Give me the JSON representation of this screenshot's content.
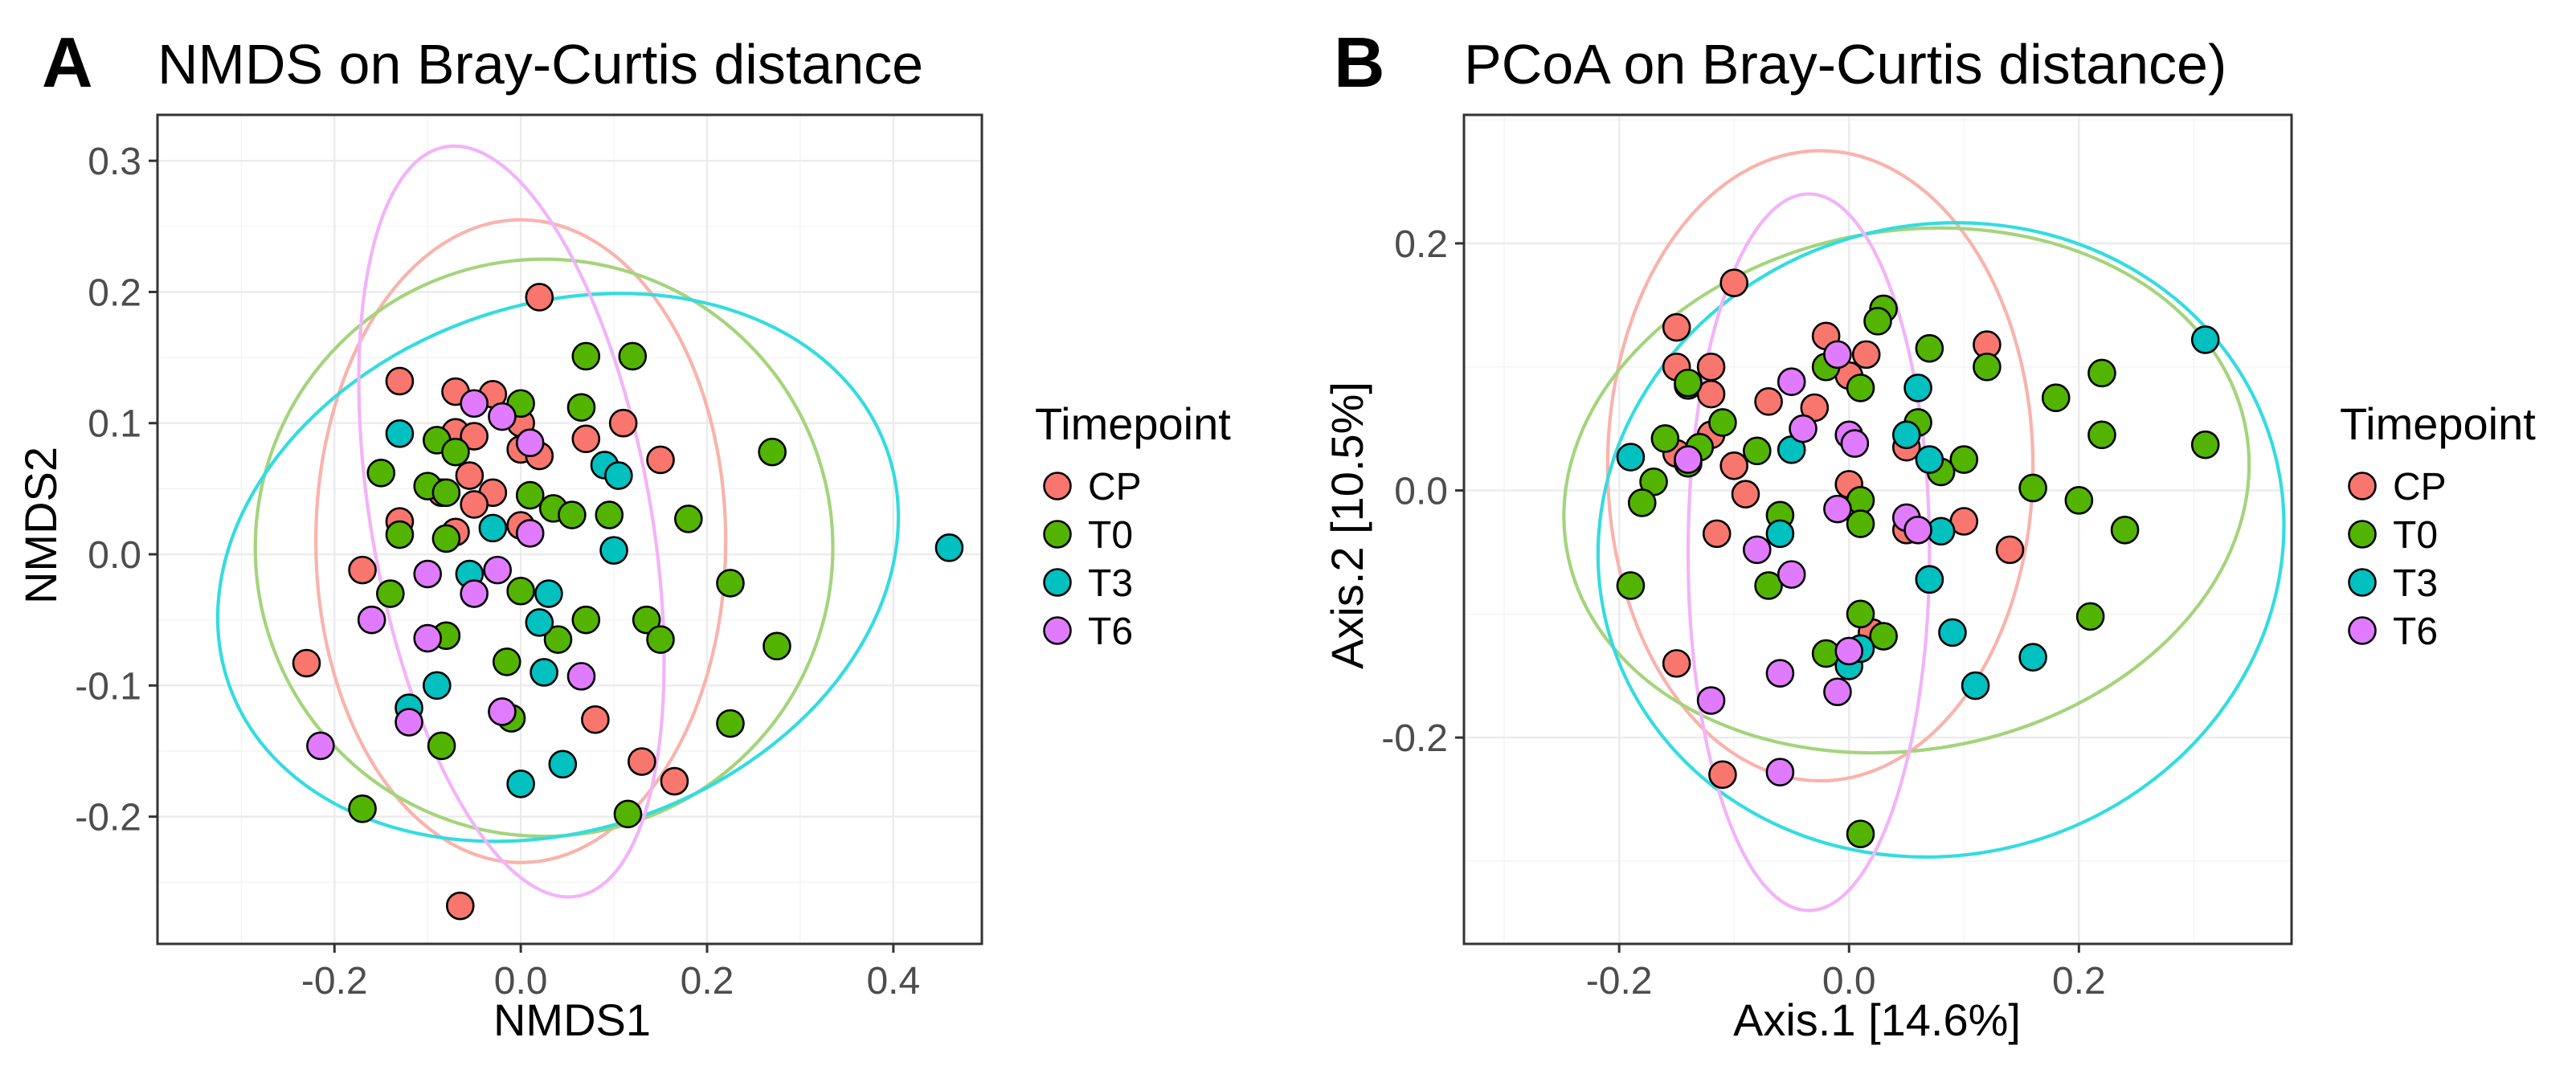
{
  "figure": {
    "legend_title": "Timepoint",
    "groups": [
      "CP",
      "T0",
      "T3",
      "T6"
    ],
    "colors": {
      "CP": "#F8766D",
      "T0": "#53B400",
      "T3": "#00C0C0",
      "T6": "#E07BFF"
    },
    "ellipse_colors": {
      "CP": "#F9B3AC",
      "T0": "#A4D47C",
      "T3": "#33DCE0",
      "T6": "#F2B3F8"
    }
  },
  "chart_data": [
    {
      "type": "scatter",
      "panel": "A",
      "title": "NMDS on Bray-Curtis distance",
      "xlabel": "NMDS1",
      "ylabel": "NMDS2",
      "xlim": [
        -0.39,
        0.495
      ],
      "ylim": [
        -0.297,
        0.335
      ],
      "xticks": [
        -0.2,
        0.0,
        0.2,
        0.4
      ],
      "xtick_labels": [
        "-0.2",
        "0.0",
        "0.2",
        "0.4"
      ],
      "yticks": [
        -0.2,
        -0.1,
        0.0,
        0.1,
        0.2,
        0.3
      ],
      "ytick_labels": [
        "-0.2",
        "-0.1",
        "0.0",
        "0.1",
        "0.2",
        "0.3"
      ],
      "grid": true,
      "legend_position": "right",
      "ellipses": {
        "CP": {
          "cx": 0.0,
          "cy": 0.01,
          "rx": 0.22,
          "ry": 0.245,
          "angle": 0
        },
        "T0": {
          "cx": 0.025,
          "cy": 0.005,
          "rx": 0.31,
          "ry": 0.22,
          "angle": 0
        },
        "T3": {
          "cx": 0.04,
          "cy": -0.01,
          "rx": 0.375,
          "ry": 0.2,
          "angle": 20
        },
        "T6": {
          "cx": -0.01,
          "cy": 0.025,
          "rx": 0.15,
          "ry": 0.29,
          "angle": 10
        }
      },
      "series": [
        {
          "name": "CP",
          "points": [
            [
              0.02,
              0.196
            ],
            [
              -0.13,
              0.132
            ],
            [
              -0.07,
              0.124
            ],
            [
              -0.03,
              0.122
            ],
            [
              -0.07,
              0.093
            ],
            [
              -0.05,
              0.09
            ],
            [
              0.0,
              0.1
            ],
            [
              0.0,
              0.08
            ],
            [
              0.02,
              0.075
            ],
            [
              0.07,
              0.088
            ],
            [
              0.11,
              0.1
            ],
            [
              0.15,
              0.072
            ],
            [
              -0.085,
              0.047
            ],
            [
              -0.055,
              0.06
            ],
            [
              -0.03,
              0.047
            ],
            [
              -0.05,
              0.038
            ],
            [
              -0.13,
              0.025
            ],
            [
              -0.07,
              0.017
            ],
            [
              0.0,
              0.022
            ],
            [
              -0.17,
              -0.012
            ],
            [
              -0.23,
              -0.083
            ],
            [
              0.08,
              -0.126
            ],
            [
              0.13,
              -0.158
            ],
            [
              0.165,
              -0.173
            ],
            [
              -0.065,
              -0.268
            ]
          ]
        },
        {
          "name": "T0",
          "points": [
            [
              0.07,
              0.151
            ],
            [
              0.12,
              0.151
            ],
            [
              0.0,
              0.115
            ],
            [
              0.065,
              0.112
            ],
            [
              -0.09,
              0.087
            ],
            [
              -0.07,
              0.078
            ],
            [
              -0.15,
              0.062
            ],
            [
              -0.1,
              0.052
            ],
            [
              -0.08,
              0.047
            ],
            [
              0.01,
              0.045
            ],
            [
              0.035,
              0.035
            ],
            [
              0.055,
              0.03
            ],
            [
              0.095,
              0.03
            ],
            [
              -0.13,
              0.015
            ],
            [
              -0.08,
              0.012
            ],
            [
              0.18,
              0.027
            ],
            [
              0.27,
              0.078
            ],
            [
              -0.14,
              -0.03
            ],
            [
              0.0,
              -0.028
            ],
            [
              0.07,
              -0.05
            ],
            [
              0.04,
              -0.065
            ],
            [
              -0.08,
              -0.062
            ],
            [
              0.135,
              -0.05
            ],
            [
              0.15,
              -0.065
            ],
            [
              0.225,
              -0.022
            ],
            [
              0.275,
              -0.07
            ],
            [
              -0.015,
              -0.082
            ],
            [
              -0.01,
              -0.125
            ],
            [
              0.225,
              -0.129
            ],
            [
              -0.085,
              -0.146
            ],
            [
              -0.17,
              -0.194
            ],
            [
              0.115,
              -0.198
            ]
          ]
        },
        {
          "name": "T3",
          "points": [
            [
              -0.13,
              0.092
            ],
            [
              0.09,
              0.068
            ],
            [
              0.105,
              0.06
            ],
            [
              -0.03,
              0.02
            ],
            [
              0.1,
              0.003
            ],
            [
              -0.055,
              -0.015
            ],
            [
              0.03,
              -0.03
            ],
            [
              0.02,
              -0.052
            ],
            [
              -0.12,
              -0.117
            ],
            [
              -0.09,
              -0.1
            ],
            [
              0.025,
              -0.09
            ],
            [
              0.0,
              -0.175
            ],
            [
              0.045,
              -0.16
            ],
            [
              0.46,
              0.005
            ]
          ]
        },
        {
          "name": "T6",
          "points": [
            [
              -0.05,
              0.115
            ],
            [
              -0.02,
              0.105
            ],
            [
              0.01,
              0.085
            ],
            [
              0.01,
              0.016
            ],
            [
              -0.1,
              -0.015
            ],
            [
              -0.05,
              -0.03
            ],
            [
              -0.025,
              -0.012
            ],
            [
              -0.16,
              -0.05
            ],
            [
              -0.1,
              -0.064
            ],
            [
              -0.02,
              -0.12
            ],
            [
              0.065,
              -0.093
            ],
            [
              -0.12,
              -0.128
            ],
            [
              -0.215,
              -0.146
            ]
          ]
        }
      ]
    },
    {
      "type": "scatter",
      "panel": "B",
      "title": "PCoA on Bray-Curtis distance)",
      "xlabel": "Axis.1   [14.6%]",
      "ylabel": "Axis.2   [10.5%]",
      "xlim": [
        -0.335,
        0.385
      ],
      "ylim": [
        -0.367,
        0.304
      ],
      "xticks": [
        -0.2,
        0.0,
        0.2
      ],
      "xtick_labels": [
        "-0.2",
        "0.0",
        "0.2"
      ],
      "yticks": [
        -0.2,
        0.0,
        0.2
      ],
      "ytick_labels": [
        "-0.2",
        "0.0",
        "0.2"
      ],
      "grid": true,
      "legend_position": "right",
      "ellipses": {
        "CP": {
          "cx": -0.025,
          "cy": 0.02,
          "rx": 0.185,
          "ry": 0.255,
          "angle": 0
        },
        "T0": {
          "cx": 0.05,
          "cy": 0.0,
          "rx": 0.3,
          "ry": 0.21,
          "angle": 10
        },
        "T3": {
          "cx": 0.08,
          "cy": -0.04,
          "rx": 0.3,
          "ry": 0.255,
          "angle": 15
        },
        "T6": {
          "cx": -0.035,
          "cy": -0.05,
          "rx": 0.105,
          "ry": 0.29,
          "angle": 0
        }
      },
      "series": [
        {
          "name": "CP",
          "points": [
            [
              -0.1,
              0.168
            ],
            [
              -0.15,
              0.132
            ],
            [
              -0.02,
              0.125
            ],
            [
              0.015,
              0.11
            ],
            [
              0.12,
              0.118
            ],
            [
              -0.15,
              0.1
            ],
            [
              -0.12,
              0.1
            ],
            [
              -0.14,
              0.085
            ],
            [
              -0.12,
              0.078
            ],
            [
              0.0,
              0.093
            ],
            [
              -0.03,
              0.067
            ],
            [
              -0.07,
              0.072
            ],
            [
              -0.12,
              0.045
            ],
            [
              -0.15,
              0.03
            ],
            [
              -0.1,
              0.02
            ],
            [
              0.05,
              0.035
            ],
            [
              0.0,
              0.005
            ],
            [
              -0.09,
              -0.003
            ],
            [
              -0.115,
              -0.035
            ],
            [
              0.05,
              -0.032
            ],
            [
              0.1,
              -0.025
            ],
            [
              0.14,
              -0.048
            ],
            [
              0.02,
              -0.115
            ],
            [
              -0.15,
              -0.14
            ],
            [
              -0.11,
              -0.23
            ]
          ]
        },
        {
          "name": "T0",
          "points": [
            [
              0.03,
              0.147
            ],
            [
              0.025,
              0.137
            ],
            [
              -0.02,
              0.1
            ],
            [
              0.07,
              0.115
            ],
            [
              0.12,
              0.1
            ],
            [
              -0.14,
              0.087
            ],
            [
              0.18,
              0.075
            ],
            [
              0.22,
              0.095
            ],
            [
              0.01,
              0.083
            ],
            [
              0.06,
              0.055
            ],
            [
              -0.11,
              0.055
            ],
            [
              -0.16,
              0.042
            ],
            [
              -0.13,
              0.035
            ],
            [
              -0.08,
              0.032
            ],
            [
              -0.14,
              0.022
            ],
            [
              -0.17,
              0.007
            ],
            [
              -0.18,
              -0.01
            ],
            [
              0.1,
              0.025
            ],
            [
              0.22,
              0.045
            ],
            [
              0.31,
              0.037
            ],
            [
              0.16,
              0.002
            ],
            [
              0.2,
              -0.008
            ],
            [
              0.24,
              -0.032
            ],
            [
              0.01,
              -0.008
            ],
            [
              0.01,
              -0.027
            ],
            [
              -0.06,
              -0.02
            ],
            [
              0.08,
              0.015
            ],
            [
              -0.19,
              -0.077
            ],
            [
              -0.07,
              -0.077
            ],
            [
              0.07,
              -0.072
            ],
            [
              0.21,
              -0.102
            ],
            [
              0.01,
              -0.1
            ],
            [
              0.03,
              -0.118
            ],
            [
              -0.02,
              -0.132
            ],
            [
              0.01,
              -0.278
            ]
          ]
        },
        {
          "name": "T3",
          "points": [
            [
              0.31,
              0.122
            ],
            [
              0.06,
              0.083
            ],
            [
              -0.19,
              0.027
            ],
            [
              0.07,
              0.025
            ],
            [
              -0.05,
              0.033
            ],
            [
              0.05,
              0.045
            ],
            [
              -0.06,
              -0.035
            ],
            [
              0.08,
              -0.033
            ],
            [
              0.07,
              -0.072
            ],
            [
              0.09,
              -0.115
            ],
            [
              0.0,
              -0.142
            ],
            [
              0.01,
              -0.128
            ],
            [
              0.11,
              -0.158
            ],
            [
              0.16,
              -0.135
            ]
          ]
        },
        {
          "name": "T6",
          "points": [
            [
              -0.01,
              0.11
            ],
            [
              -0.05,
              0.088
            ],
            [
              -0.04,
              0.05
            ],
            [
              0.0,
              0.045
            ],
            [
              0.005,
              0.038
            ],
            [
              -0.14,
              0.025
            ],
            [
              -0.01,
              -0.015
            ],
            [
              0.05,
              -0.022
            ],
            [
              0.06,
              -0.032
            ],
            [
              -0.05,
              -0.068
            ],
            [
              -0.08,
              -0.048
            ],
            [
              0.0,
              -0.13
            ],
            [
              -0.06,
              -0.148
            ],
            [
              -0.01,
              -0.163
            ],
            [
              -0.12,
              -0.17
            ],
            [
              -0.06,
              -0.228
            ]
          ]
        }
      ]
    }
  ]
}
